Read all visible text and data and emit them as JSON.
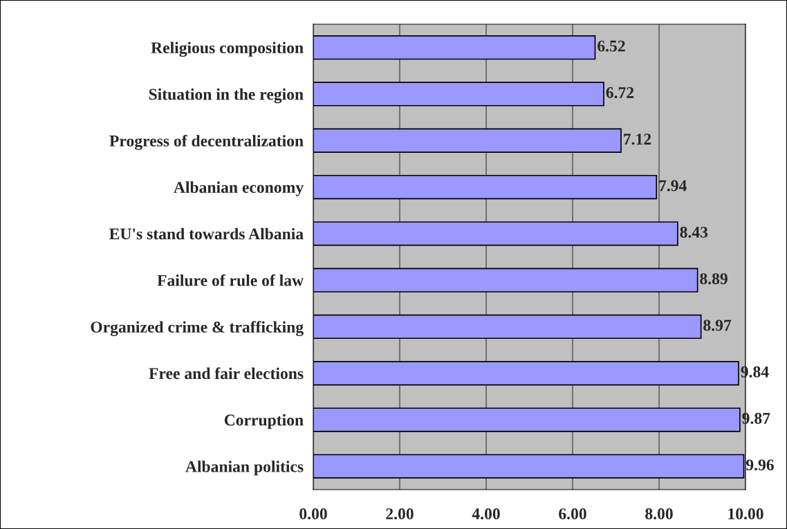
{
  "chart_data": {
    "type": "bar",
    "orientation": "horizontal",
    "categories": [
      "Religious composition",
      "Situation in the region",
      "Progress of decentralization",
      "Albanian economy",
      "EU's stand towards Albania",
      "Failure of rule of law",
      "Organized crime & trafficking",
      "Free and fair elections",
      "Corruption",
      "Albanian politics"
    ],
    "values": [
      6.52,
      6.72,
      7.12,
      7.94,
      8.43,
      8.89,
      8.97,
      9.84,
      9.87,
      9.96
    ],
    "color": "#9999ff",
    "xlim": [
      0,
      10
    ],
    "xticks": [
      {
        "value": 0,
        "label": "0.00"
      },
      {
        "value": 2,
        "label": "2.00"
      },
      {
        "value": 4,
        "label": "4.00"
      },
      {
        "value": 6,
        "label": "6.00"
      },
      {
        "value": 8,
        "label": "8.00"
      },
      {
        "value": 10,
        "label": "10.00"
      }
    ],
    "grid": "x",
    "data_labels": true
  }
}
